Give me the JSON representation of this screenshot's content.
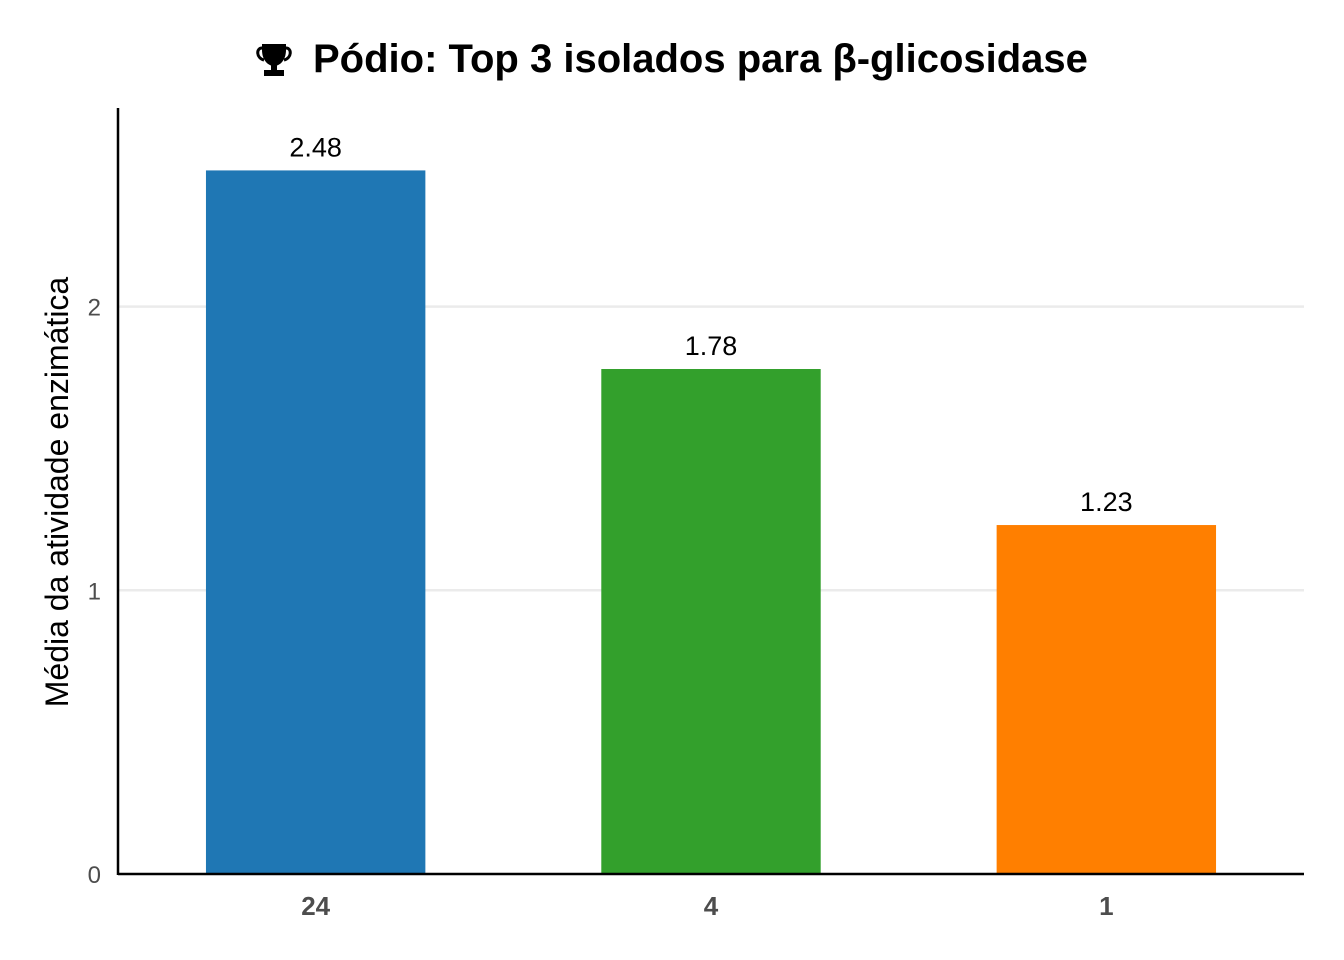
{
  "chart_data": {
    "type": "bar",
    "title": "Pódio: Top 3 isolados para β-glicosidase",
    "title_icon": "trophy-icon",
    "xlabel": "",
    "ylabel": "Média da atividade enzimática",
    "categories": [
      "24",
      "4",
      "1"
    ],
    "values": [
      2.48,
      1.78,
      1.23
    ],
    "value_labels": [
      "2.48",
      "1.78",
      "1.23"
    ],
    "colors": [
      "#1f77b4",
      "#33a02c",
      "#ff7f00"
    ],
    "ylim": [
      0,
      2.7
    ],
    "yticks": [
      0,
      1,
      2
    ],
    "ytick_labels": [
      "0",
      "1",
      "2"
    ],
    "grid": "horizontal major only",
    "legend": "none"
  }
}
